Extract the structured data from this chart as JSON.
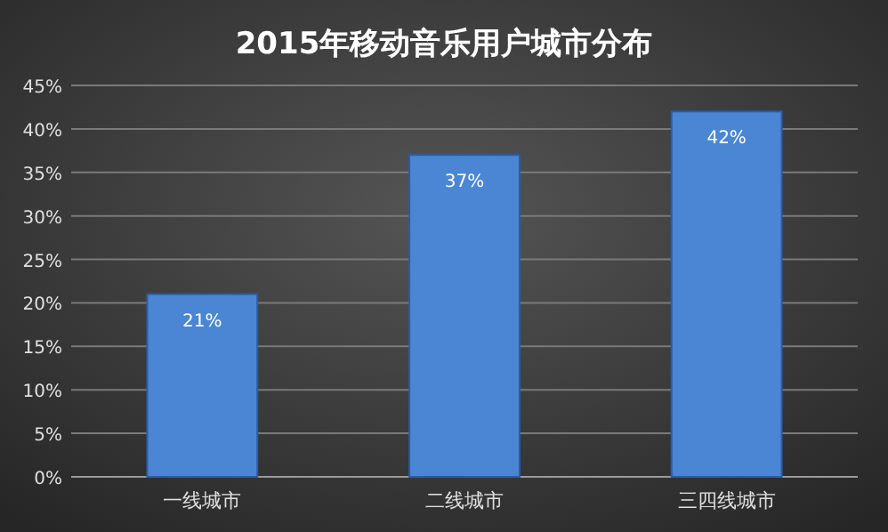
{
  "chart_data": {
    "type": "bar",
    "title": "2015年移动音乐用户城市分布",
    "categories": [
      "一线城市",
      "二线城市",
      "三四线城市"
    ],
    "values": [
      21,
      37,
      42
    ],
    "color": "#4a86d4",
    "value_labels": [
      "21%",
      "37%",
      "42%"
    ],
    "ylim": [
      0,
      45
    ],
    "yticks": [
      {
        "value": 0,
        "label": "0%"
      },
      {
        "value": 5,
        "label": "5%"
      },
      {
        "value": 10,
        "label": "10%"
      },
      {
        "value": 15,
        "label": "15%"
      },
      {
        "value": 20,
        "label": "20%"
      },
      {
        "value": 25,
        "label": "25%"
      },
      {
        "value": 30,
        "label": "30%"
      },
      {
        "value": 35,
        "label": "35%"
      },
      {
        "value": 40,
        "label": "40%"
      },
      {
        "value": 45,
        "label": "45%"
      }
    ],
    "grid": "y"
  }
}
